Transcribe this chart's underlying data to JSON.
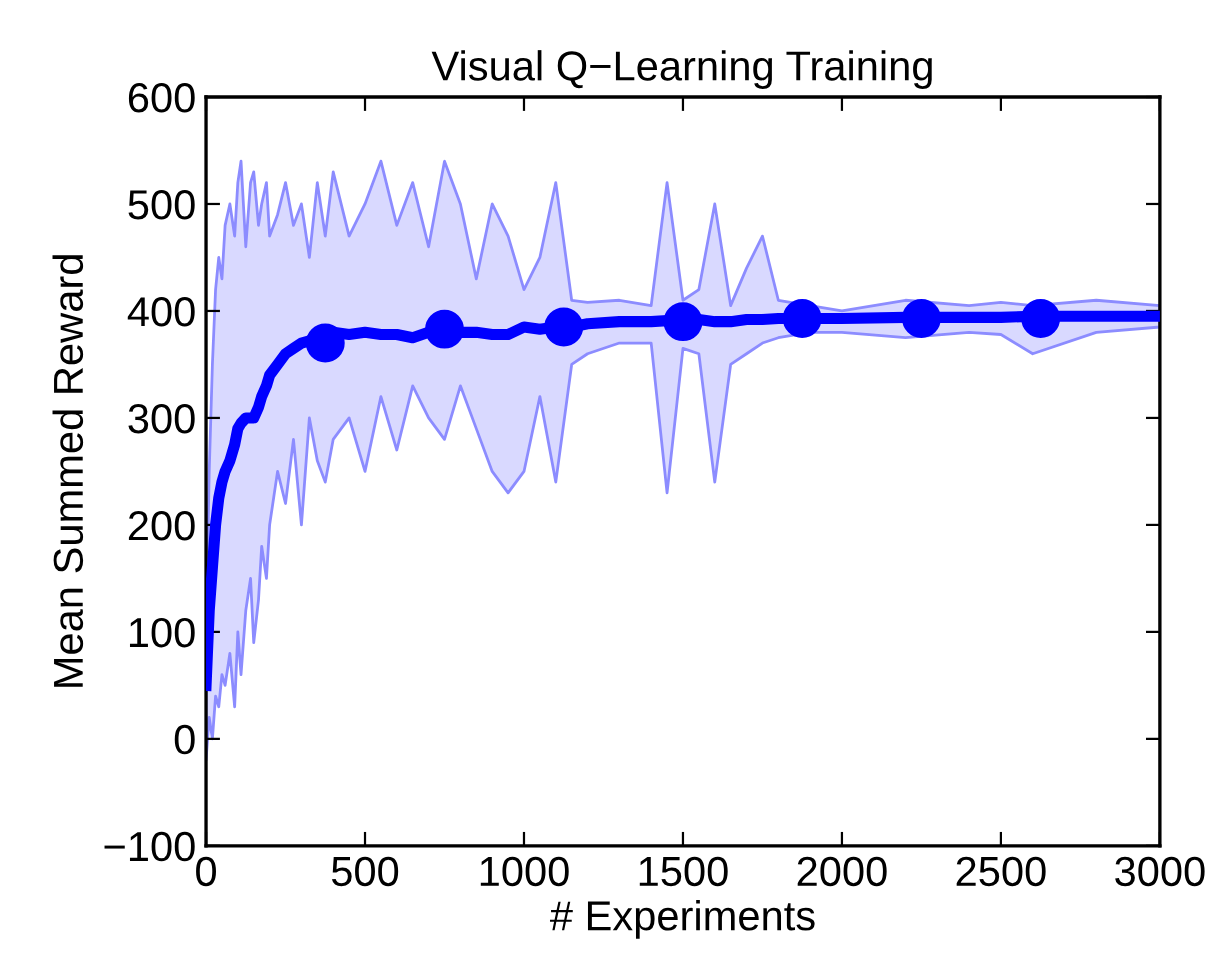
{
  "chart_data": {
    "type": "line",
    "title": "Visual Q−Learning Training",
    "xlabel": "# Experiments",
    "ylabel": "Mean Summed Reward",
    "xlim": [
      0,
      3000
    ],
    "xticks": [
      0,
      500,
      1000,
      1500,
      2000,
      2500,
      3000
    ],
    "ylim": [
      -100,
      600
    ],
    "yticks": [
      {
        "value": -100,
        "label": "−100"
      },
      0,
      100,
      200,
      300,
      400,
      500,
      600
    ],
    "grid": false,
    "series": [
      {
        "color": "#0000ff",
        "marker": "none",
        "x": [
          0,
          10,
          20,
          30,
          40,
          50,
          60,
          75,
          90,
          100,
          110,
          125,
          140,
          150,
          165,
          175,
          190,
          200,
          225,
          250,
          275,
          300,
          325,
          350,
          375,
          400,
          450,
          500,
          550,
          600,
          650,
          700,
          750,
          800,
          850,
          900,
          950,
          1000,
          1050,
          1100,
          1150,
          1200,
          1300,
          1400,
          1450,
          1500,
          1550,
          1600,
          1650,
          1700,
          1750,
          1800,
          1900,
          2000,
          2200,
          2400,
          2500,
          2600,
          2800,
          3000
        ],
        "values": [
          50,
          120,
          160,
          200,
          225,
          240,
          250,
          260,
          275,
          290,
          295,
          300,
          300,
          300,
          310,
          320,
          330,
          340,
          350,
          360,
          365,
          370,
          372,
          375,
          372,
          380,
          378,
          380,
          378,
          378,
          375,
          380,
          382,
          380,
          380,
          378,
          378,
          385,
          383,
          385,
          385,
          388,
          390,
          390,
          391,
          390,
          392,
          390,
          390,
          392,
          392,
          393,
          393,
          393,
          394,
          394,
          394,
          395,
          395,
          395
        ],
        "upper": [
          100,
          250,
          350,
          420,
          450,
          430,
          480,
          500,
          470,
          520,
          540,
          460,
          520,
          530,
          480,
          500,
          520,
          470,
          490,
          520,
          480,
          500,
          450,
          520,
          470,
          530,
          470,
          500,
          540,
          480,
          520,
          460,
          540,
          500,
          430,
          500,
          470,
          420,
          450,
          520,
          410,
          408,
          410,
          405,
          520,
          410,
          420,
          500,
          405,
          440,
          470,
          410,
          405,
          400,
          410,
          405,
          408,
          405,
          410,
          405
        ],
        "lower": [
          -20,
          20,
          0,
          40,
          30,
          60,
          50,
          80,
          30,
          100,
          60,
          120,
          150,
          90,
          130,
          180,
          150,
          200,
          250,
          220,
          280,
          200,
          300,
          260,
          240,
          280,
          300,
          250,
          320,
          270,
          330,
          300,
          280,
          330,
          290,
          250,
          230,
          250,
          320,
          240,
          350,
          360,
          370,
          370,
          230,
          365,
          360,
          240,
          350,
          360,
          370,
          375,
          380,
          380,
          375,
          380,
          378,
          360,
          380,
          385
        ]
      },
      {
        "type": "scatter",
        "color": "#0000ff",
        "marker": "circle",
        "x": [
          375,
          750,
          1125,
          1500,
          1875,
          2250,
          2625
        ],
        "values": [
          370,
          383,
          385,
          390,
          393,
          393,
          393
        ]
      }
    ]
  }
}
